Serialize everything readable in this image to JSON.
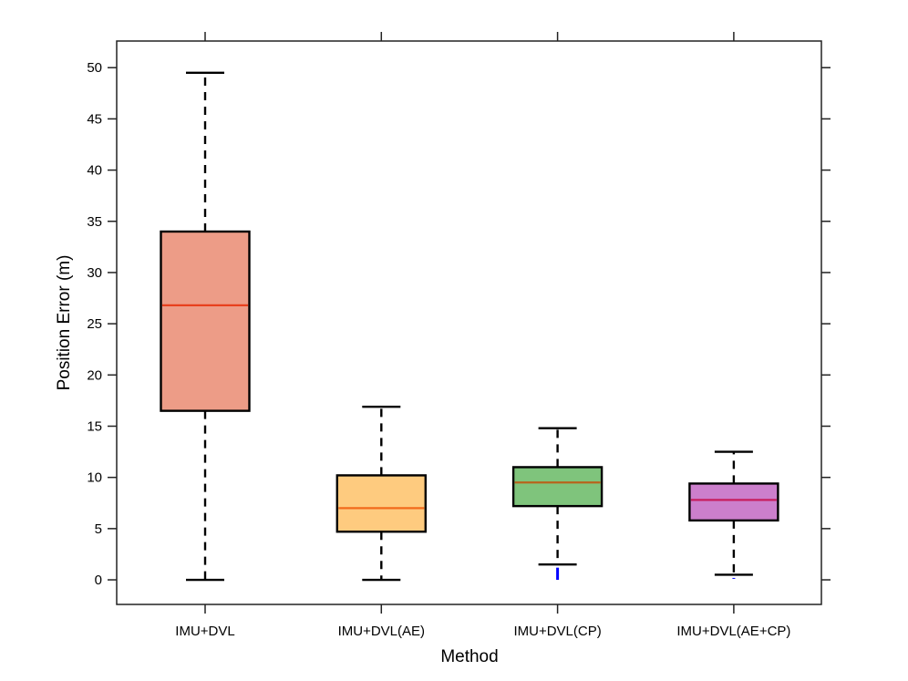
{
  "chart_data": {
    "type": "boxplot",
    "title": "",
    "xlabel": "Method",
    "ylabel": "Position Error (m)",
    "ylim": [
      -2.4,
      52.6
    ],
    "yticks": [
      0,
      5,
      10,
      15,
      20,
      25,
      30,
      35,
      40,
      45,
      50
    ],
    "categories": [
      "IMU+DVL",
      "IMU+DVL(AE)",
      "IMU+DVL(CP)",
      "IMU+DVL(AE+CP)"
    ],
    "series": [
      {
        "name": "IMU+DVL",
        "min": 0,
        "q1": 16.5,
        "median": 26.8,
        "q3": 34.0,
        "max": 49.5,
        "outliers": [],
        "fill": "#ED9C87",
        "median_color": "#E8401E"
      },
      {
        "name": "IMU+DVL(AE)",
        "min": 0,
        "q1": 4.7,
        "median": 7.0,
        "q3": 10.2,
        "max": 16.9,
        "outliers": [],
        "fill": "#FECB7F",
        "median_color": "#F26A1B"
      },
      {
        "name": "IMU+DVL(CP)",
        "min": 1.5,
        "q1": 7.2,
        "median": 9.5,
        "q3": 11.0,
        "max": 14.8,
        "outliers": [
          0.0,
          0.3,
          0.7,
          1.1
        ],
        "fill": "#7FC47C",
        "median_color": "#B8641C"
      },
      {
        "name": "IMU+DVL(AE+CP)",
        "min": 0.5,
        "q1": 5.8,
        "median": 7.8,
        "q3": 9.4,
        "max": 12.5,
        "outliers": [
          0.1
        ],
        "fill": "#CC7FCC",
        "median_color": "#C71E5E"
      }
    ],
    "outlier_color": "#0000FF",
    "grid": false
  }
}
